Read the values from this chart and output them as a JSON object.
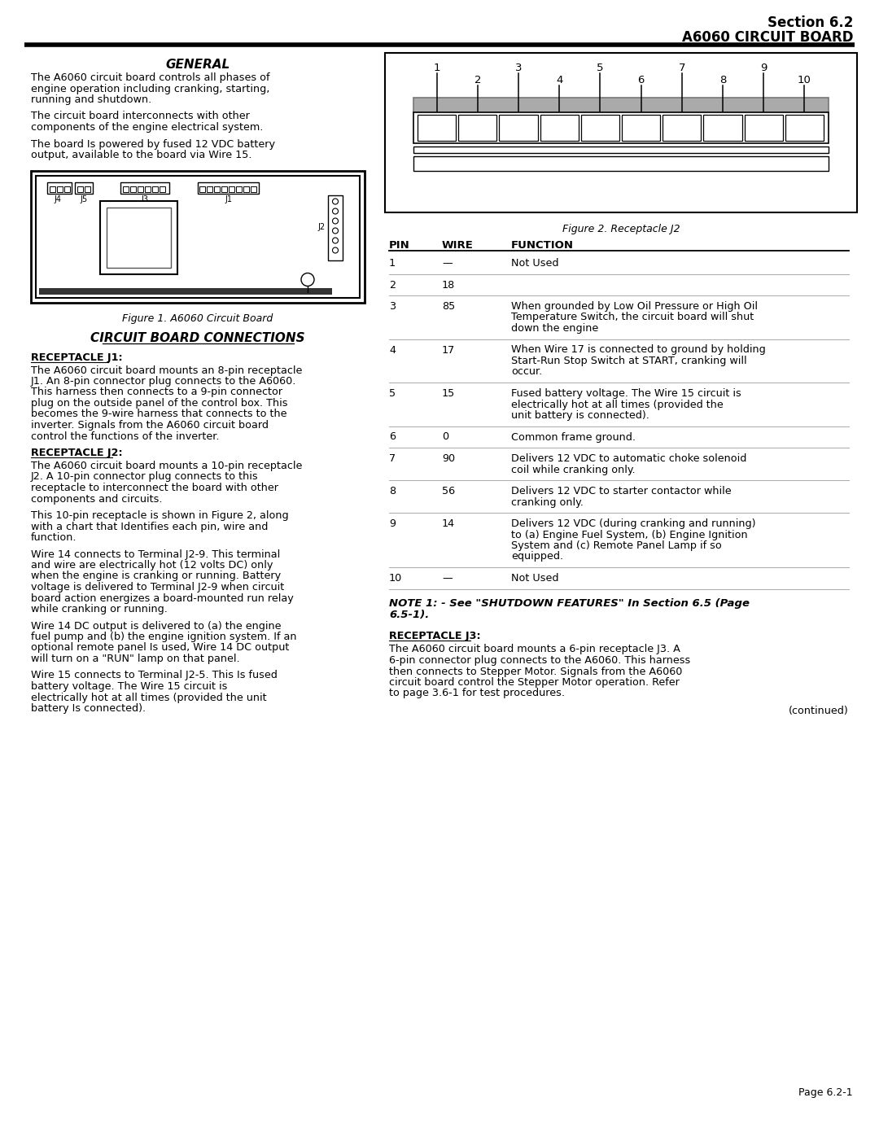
{
  "page_bg": "#ffffff",
  "header": {
    "right_line1": "Section 6.2",
    "right_line2": "A6060 CIRCUIT BOARD"
  },
  "left_col": {
    "general_title": "GENERAL",
    "general_paragraphs": [
      "The A6060 circuit board controls all phases of engine operation including cranking, starting, running and shutdown.",
      "The circuit board interconnects with other components of the engine electrical system.",
      "The board Is powered by fused 12 VDC battery output, available to the board via Wire 15."
    ],
    "figure1_caption": "Figure 1. A6060 Circuit Board",
    "circuit_board_title": "CIRCUIT BOARD CONNECTIONS",
    "receptacle_j1_title": "RECEPTACLE J1:",
    "receptacle_j1_text": "The A6060 circuit board mounts an 8-pin receptacle J1. An 8-pin connector plug connects to the A6060. This harness then connects to a 9-pin connector plug on the outside panel of the control box. This becomes the 9-wire harness that connects to the inverter. Signals from the A6060 circuit board control the functions of the inverter.",
    "receptacle_j2_title": "RECEPTACLE J2:",
    "receptacle_j2_paras": [
      "The A6060 circuit board mounts a 10-pin receptacle J2. A 10-pin connector plug connects to this receptacle to interconnect the board with other components and circuits.",
      "This 10-pin receptacle is shown in Figure 2, along with a chart that Identifies each pin, wire and function.",
      "Wire 14 connects to Terminal J2-9. This terminal and wire are electrically hot (12 volts DC) only when the engine is cranking or running. Battery voltage is delivered to Terminal J2-9 when circuit board action energizes a board-mounted run relay while cranking or running.",
      "Wire 14 DC output is delivered to (a) the engine fuel pump and (b) the engine ignition system. If an optional remote panel Is used, Wire  14 DC output will turn on a \"RUN\" lamp on that panel.",
      "Wire 15 connects to Terminal J2-5. This Is fused battery voltage. The Wire 15 circuit is electrically hot at all times (provided the unit battery Is connected)."
    ]
  },
  "right_col": {
    "figure2_caption": "Figure 2. Receptacle J2",
    "table_headers": [
      "PIN",
      "WIRE",
      "FUNCTION"
    ],
    "table_rows": [
      [
        "1",
        "—",
        "Not Used"
      ],
      [
        "2",
        "18",
        ""
      ],
      [
        "3",
        "85",
        "When grounded by Low Oil Pressure or High Oil Temperature Switch, the circuit board will shut down the engine"
      ],
      [
        "4",
        "17",
        "When Wire 17 is connected to ground by holding Start-Run Stop Switch at START, cranking will occur."
      ],
      [
        "5",
        "15",
        "Fused battery voltage. The Wire 15 circuit is electrically hot at all times (provided the unit battery is connected)."
      ],
      [
        "6",
        "0",
        "Common frame ground."
      ],
      [
        "7",
        "90",
        "Delivers 12 VDC to automatic choke solenoid coil while cranking only."
      ],
      [
        "8",
        "56",
        "Delivers 12 VDC to starter contactor while cranking only."
      ],
      [
        "9",
        "14",
        "Delivers 12 VDC (during cranking and running) to (a) Engine Fuel System, (b) Engine Ignition System and (c) Remote Panel Lamp if so equipped."
      ],
      [
        "10",
        "—",
        "Not Used"
      ]
    ],
    "note_text": "NOTE 1: - See \"SHUTDOWN FEATURES\" In Section 6.5 (Page 6.5-1).",
    "receptacle_j3_title": "RECEPTACLE J3:",
    "receptacle_j3_text": "The A6060 circuit board mounts a 6-pin receptacle J3. A 6-pin connector plug connects to the A6060. This harness then connects to Stepper Motor. Signals from the A6060 circuit board control the Stepper Motor operation. Refer to page 3.6-1 for test procedures.",
    "continued": "(continued)"
  },
  "footer": "Page 6.2-1"
}
